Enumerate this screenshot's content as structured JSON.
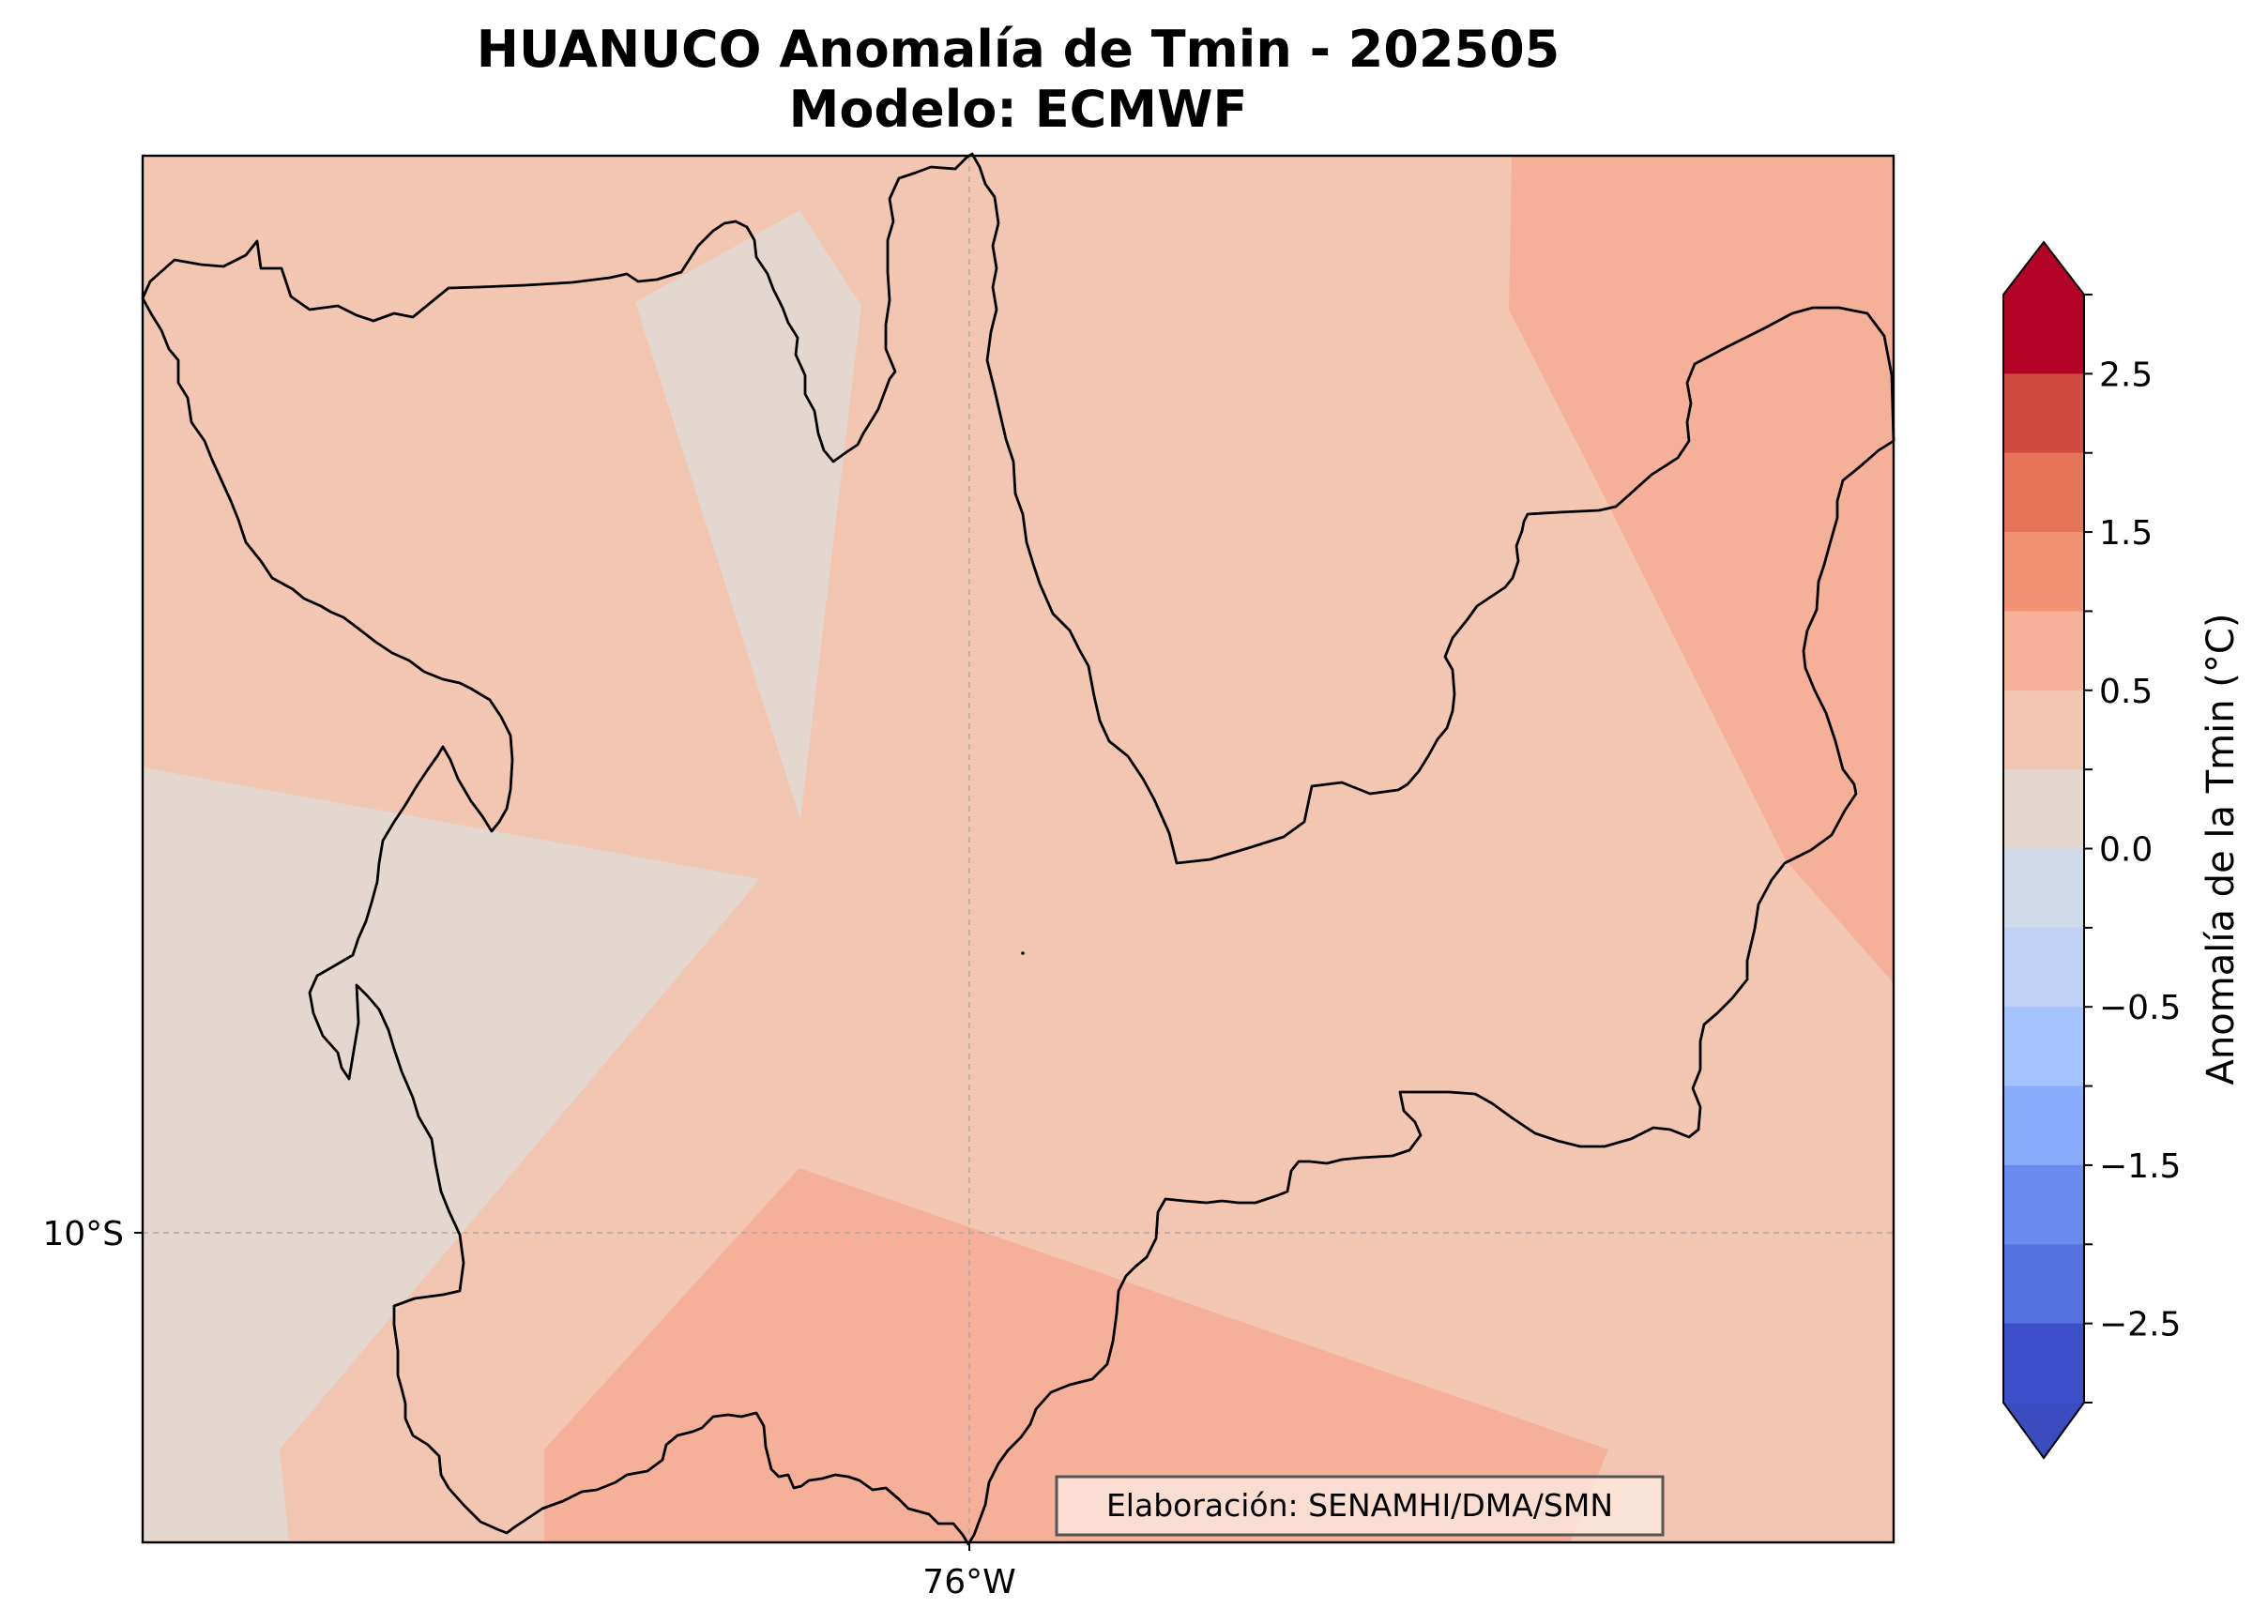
{
  "title_line1": "HUANUCO Anomalía de Tmin - 202505",
  "title_line2": "Modelo: ECMWF",
  "axes": {
    "lat_tick": "10°S",
    "lon_tick": "76°W"
  },
  "credit": "Elaboración: SENAMHI/DMA/SMN",
  "colorbar": {
    "label": "Anomalía de la Tmin (°C)",
    "tick_labels": [
      "2.5",
      "1.5",
      "0.5",
      "0.0",
      "−0.5",
      "−1.5",
      "−2.5"
    ],
    "bins_top_to_bottom": [
      "#b40426",
      "#d24b40",
      "#e67459",
      "#f29274",
      "#f5b09a",
      "#f2c6b1",
      "#e4d7cf",
      "#d1dae8",
      "#bfd1f5",
      "#a5c3fe",
      "#89acfd",
      "#6a8bef",
      "#5471e0",
      "#3d4fc8"
    ],
    "extend_max_color": "#b40426",
    "extend_min_color": "#3b4cc0"
  },
  "region": "HUANUCO",
  "colors": {
    "field_base": "#f2c6b1",
    "field_near_zero": "#e4d7cf",
    "field_warm": "#f5b09a",
    "boundary": "#000000",
    "gridline": "#b0a8a2"
  }
}
